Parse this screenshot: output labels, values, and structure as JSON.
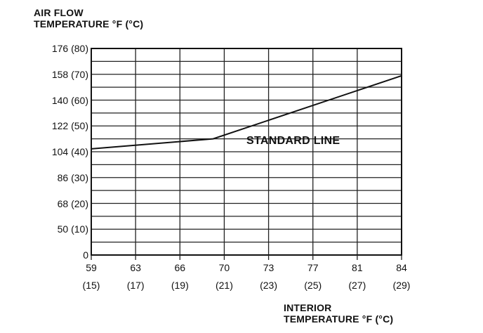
{
  "chart_data": {
    "type": "line",
    "ylabel_lines": [
      "AIR FLOW",
      "TEMPERATURE °F (°C)"
    ],
    "xlabel_lines": [
      "INTERIOR",
      "TEMPERATURE °F (°C)"
    ],
    "y_ticks": [
      {
        "value": 0,
        "label": "0"
      },
      {
        "value": 50,
        "label": "50 (10)"
      },
      {
        "value": 68,
        "label": "68 (20)"
      },
      {
        "value": 86,
        "label": "86 (30)"
      },
      {
        "value": 104,
        "label": "104 (40)"
      },
      {
        "value": 122,
        "label": "122 (50)"
      },
      {
        "value": 140,
        "label": "140 (60)"
      },
      {
        "value": 158,
        "label": "158 (70)"
      },
      {
        "value": 176,
        "label": "176 (80)"
      }
    ],
    "x_ticks": [
      {
        "value": 59,
        "f": "59",
        "c": "(15)"
      },
      {
        "value": 63,
        "f": "63",
        "c": "(17)"
      },
      {
        "value": 66,
        "f": "66",
        "c": "(19)"
      },
      {
        "value": 70,
        "f": "70",
        "c": "(21)"
      },
      {
        "value": 73,
        "f": "73",
        "c": "(23)"
      },
      {
        "value": 77,
        "f": "77",
        "c": "(25)"
      },
      {
        "value": 81,
        "f": "81",
        "c": "(27)"
      },
      {
        "value": 84,
        "f": "84",
        "c": "(29)"
      }
    ],
    "series": [
      {
        "x": [
          59,
          69,
          84
        ],
        "y": [
          106,
          113,
          157
        ]
      }
    ],
    "annotation": "STANDARD LINE",
    "grid": true
  }
}
